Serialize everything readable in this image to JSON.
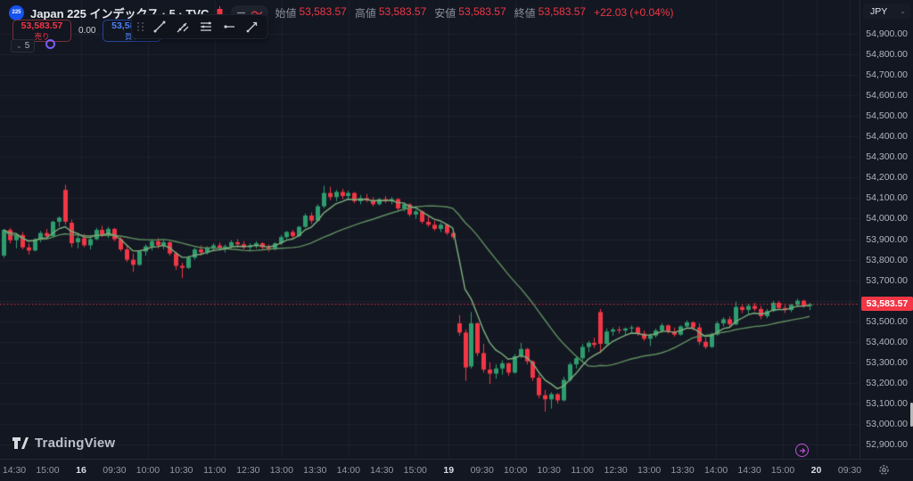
{
  "header": {
    "symbol_badge": "225",
    "symbol_title": "Japan 225 インデックス · 5 · TVC",
    "ohlc": {
      "o_label": "始値",
      "o": "53,583.57",
      "h_label": "高値",
      "h": "53,583.57",
      "l_label": "安値",
      "l": "53,583.57",
      "c_label": "終値",
      "c": "53,583.57",
      "change": "+22.03 (+0.04%)"
    }
  },
  "trade_panel": {
    "sell_price": "53,583.57",
    "sell_label": "売り",
    "spread": "0.00",
    "buy_price": "53,583.57",
    "buy_label": "買い"
  },
  "toolbar_icons": [
    "drag-handle",
    "trend-line",
    "info-line",
    "parallel-lines",
    "horizontal-ray",
    "arrow-line"
  ],
  "timeframe_chip": {
    "value": "5"
  },
  "price_axis": {
    "currency": "JPY",
    "current_price": "53,583.57"
  },
  "footer": {
    "logo_text": "TradingView"
  },
  "chart_data": {
    "type": "candlestick",
    "title": "Japan 225 インデックス",
    "interval": "5",
    "exchange": "TVC",
    "currency": "JPY",
    "ylim": [
      52900,
      54900
    ],
    "y_ticks": [
      54900,
      54800,
      54700,
      54600,
      54500,
      54400,
      54300,
      54200,
      54100,
      54000,
      53900,
      53800,
      53700,
      53600,
      53500,
      53400,
      53300,
      53200,
      53100,
      53000,
      52900
    ],
    "y_tick_format": "#,##0.00",
    "x_ticks": [
      {
        "label": "14:30",
        "bold": false
      },
      {
        "label": "15:00",
        "bold": false
      },
      {
        "label": "16",
        "bold": true
      },
      {
        "label": "09:30",
        "bold": false
      },
      {
        "label": "10:00",
        "bold": false
      },
      {
        "label": "10:30",
        "bold": false
      },
      {
        "label": "11:00",
        "bold": false
      },
      {
        "label": "12:30",
        "bold": false
      },
      {
        "label": "13:00",
        "bold": false
      },
      {
        "label": "13:30",
        "bold": false
      },
      {
        "label": "14:00",
        "bold": false
      },
      {
        "label": "14:30",
        "bold": false
      },
      {
        "label": "15:00",
        "bold": false
      },
      {
        "label": "19",
        "bold": true
      },
      {
        "label": "09:30",
        "bold": false
      },
      {
        "label": "10:00",
        "bold": false
      },
      {
        "label": "10:30",
        "bold": false
      },
      {
        "label": "11:00",
        "bold": false
      },
      {
        "label": "12:30",
        "bold": false
      },
      {
        "label": "13:00",
        "bold": false
      },
      {
        "label": "13:30",
        "bold": false
      },
      {
        "label": "14:00",
        "bold": false
      },
      {
        "label": "14:30",
        "bold": false
      },
      {
        "label": "15:00",
        "bold": false
      },
      {
        "label": "20",
        "bold": true
      },
      {
        "label": "09:30",
        "bold": false
      }
    ],
    "grid_tick_indices": [
      2,
      4,
      6,
      8,
      10,
      12,
      13,
      15,
      17,
      19,
      21,
      23,
      24,
      25
    ],
    "current_price": 53583.57,
    "up_color": "#2e9d6e",
    "down_color": "#f23645",
    "ma_overlays": [
      {
        "name": "ma-fast",
        "period": 6,
        "color": "#7fae7c"
      },
      {
        "name": "ma-slow",
        "period": 22,
        "color": "#5f8f5f"
      }
    ],
    "candles": [
      [
        53820,
        53950,
        53810,
        53945
      ],
      [
        53945,
        53955,
        53880,
        53895
      ],
      [
        53895,
        53930,
        53855,
        53920
      ],
      [
        53920,
        53935,
        53850,
        53860
      ],
      [
        53860,
        53880,
        53825,
        53845
      ],
      [
        53845,
        53905,
        53840,
        53900
      ],
      [
        53900,
        53940,
        53885,
        53930
      ],
      [
        53930,
        53950,
        53900,
        53915
      ],
      [
        53915,
        53990,
        53910,
        53985
      ],
      [
        53985,
        54010,
        53960,
        54005
      ],
      [
        54140,
        54165,
        53970,
        53985
      ],
      [
        53980,
        53995,
        53860,
        53880
      ],
      [
        53885,
        53915,
        53855,
        53905
      ],
      [
        53905,
        53925,
        53860,
        53870
      ],
      [
        53870,
        53910,
        53850,
        53900
      ],
      [
        53900,
        53955,
        53895,
        53945
      ],
      [
        53945,
        53965,
        53910,
        53920
      ],
      [
        53920,
        53960,
        53905,
        53950
      ],
      [
        53950,
        53955,
        53890,
        53900
      ],
      [
        53900,
        53910,
        53840,
        53850
      ],
      [
        53850,
        53870,
        53790,
        53800
      ],
      [
        53800,
        53830,
        53740,
        53775
      ],
      [
        53775,
        53845,
        53770,
        53840
      ],
      [
        53840,
        53875,
        53820,
        53865
      ],
      [
        53865,
        53900,
        53845,
        53890
      ],
      [
        53890,
        53905,
        53855,
        53870
      ],
      [
        53870,
        53895,
        53850,
        53885
      ],
      [
        53885,
        53890,
        53820,
        53830
      ],
      [
        53830,
        53840,
        53750,
        53770
      ],
      [
        53770,
        53785,
        53710,
        53760
      ],
      [
        53760,
        53820,
        53755,
        53810
      ],
      [
        53810,
        53860,
        53800,
        53850
      ],
      [
        53850,
        53870,
        53820,
        53835
      ],
      [
        53835,
        53865,
        53825,
        53855
      ],
      [
        53855,
        53880,
        53840,
        53870
      ],
      [
        53870,
        53885,
        53845,
        53855
      ],
      [
        53855,
        53875,
        53835,
        53865
      ],
      [
        53865,
        53895,
        53855,
        53885
      ],
      [
        53885,
        53900,
        53860,
        53875
      ],
      [
        53875,
        53890,
        53850,
        53860
      ],
      [
        53860,
        53880,
        53845,
        53870
      ],
      [
        53870,
        53890,
        53855,
        53880
      ],
      [
        53880,
        53885,
        53850,
        53860
      ],
      [
        53860,
        53875,
        53840,
        53850
      ],
      [
        53850,
        53885,
        53845,
        53880
      ],
      [
        53880,
        53920,
        53870,
        53910
      ],
      [
        53910,
        53940,
        53900,
        53935
      ],
      [
        53935,
        53945,
        53905,
        53915
      ],
      [
        53915,
        53965,
        53910,
        53960
      ],
      [
        53960,
        54025,
        53955,
        54015
      ],
      [
        54015,
        54030,
        53975,
        53990
      ],
      [
        53990,
        54070,
        53985,
        54060
      ],
      [
        54060,
        54160,
        54050,
        54125
      ],
      [
        54125,
        54155,
        54090,
        54105
      ],
      [
        54105,
        54140,
        54085,
        54130
      ],
      [
        54130,
        54145,
        54095,
        54110
      ],
      [
        54110,
        54135,
        54090,
        54125
      ],
      [
        54125,
        54130,
        54075,
        54085
      ],
      [
        54085,
        54115,
        54070,
        54100
      ],
      [
        54100,
        54120,
        54080,
        54090
      ],
      [
        54090,
        54105,
        54060,
        54070
      ],
      [
        54070,
        54100,
        54065,
        54095
      ],
      [
        54095,
        54110,
        54075,
        54085
      ],
      [
        54085,
        54105,
        54070,
        54095
      ],
      [
        54095,
        54100,
        54040,
        54050
      ],
      [
        54050,
        54080,
        54035,
        54070
      ],
      [
        54070,
        54075,
        54010,
        54020
      ],
      [
        54020,
        54045,
        54000,
        54035
      ],
      [
        54035,
        54040,
        53975,
        53985
      ],
      [
        53985,
        54010,
        53960,
        53970
      ],
      [
        53970,
        53990,
        53940,
        53950
      ],
      [
        53950,
        53980,
        53935,
        53970
      ],
      [
        53970,
        53975,
        53920,
        53930
      ],
      [
        53930,
        53950,
        53900,
        53910
      ],
      [
        53490,
        53530,
        53430,
        53445
      ],
      [
        53445,
        53460,
        53210,
        53275
      ],
      [
        53280,
        53545,
        53270,
        53490
      ],
      [
        53490,
        53495,
        53330,
        53345
      ],
      [
        53345,
        53390,
        53250,
        53265
      ],
      [
        53265,
        53300,
        53195,
        53245
      ],
      [
        53245,
        53290,
        53220,
        53270
      ],
      [
        53270,
        53310,
        53240,
        53295
      ],
      [
        53295,
        53300,
        53235,
        53250
      ],
      [
        53250,
        53340,
        53245,
        53330
      ],
      [
        53330,
        53395,
        53320,
        53365
      ],
      [
        53365,
        53370,
        53290,
        53305
      ],
      [
        53305,
        53310,
        53210,
        53225
      ],
      [
        53225,
        53240,
        53125,
        53140
      ],
      [
        53140,
        53165,
        53060,
        53120
      ],
      [
        53120,
        53155,
        53075,
        53145
      ],
      [
        53145,
        53150,
        53100,
        53115
      ],
      [
        53115,
        53230,
        53110,
        53215
      ],
      [
        53215,
        53300,
        53205,
        53290
      ],
      [
        53290,
        53330,
        53270,
        53320
      ],
      [
        53320,
        53390,
        53310,
        53375
      ],
      [
        53375,
        53405,
        53350,
        53395
      ],
      [
        53395,
        53420,
        53370,
        53385
      ],
      [
        53545,
        53560,
        53345,
        53390
      ],
      [
        53390,
        53465,
        53385,
        53450
      ],
      [
        53450,
        53470,
        53430,
        53460
      ],
      [
        53460,
        53475,
        53440,
        53455
      ],
      [
        53455,
        53470,
        53435,
        53465
      ],
      [
        53465,
        53480,
        53445,
        53470
      ],
      [
        53470,
        53475,
        53430,
        53440
      ],
      [
        53440,
        53455,
        53405,
        53415
      ],
      [
        53415,
        53440,
        53380,
        53430
      ],
      [
        53430,
        53465,
        53420,
        53455
      ],
      [
        53455,
        53490,
        53445,
        53480
      ],
      [
        53480,
        53485,
        53440,
        53450
      ],
      [
        53450,
        53470,
        53425,
        53435
      ],
      [
        53435,
        53480,
        53430,
        53475
      ],
      [
        53475,
        53505,
        53465,
        53495
      ],
      [
        53495,
        53500,
        53455,
        53470
      ],
      [
        53470,
        53490,
        53385,
        53400
      ],
      [
        53400,
        53420,
        53365,
        53375
      ],
      [
        53375,
        53445,
        53370,
        53435
      ],
      [
        53435,
        53500,
        53430,
        53490
      ],
      [
        53490,
        53520,
        53475,
        53510
      ],
      [
        53510,
        53525,
        53470,
        53485
      ],
      [
        53485,
        53595,
        53480,
        53570
      ],
      [
        53570,
        53580,
        53540,
        53555
      ],
      [
        53555,
        53585,
        53535,
        53575
      ],
      [
        53575,
        53590,
        53550,
        53560
      ],
      [
        53560,
        53575,
        53510,
        53525
      ],
      [
        53525,
        53560,
        53515,
        53550
      ],
      [
        53550,
        53600,
        53545,
        53590
      ],
      [
        53590,
        53600,
        53555,
        53565
      ],
      [
        53565,
        53580,
        53540,
        53555
      ],
      [
        53555,
        53585,
        53545,
        53580
      ],
      [
        53580,
        53610,
        53570,
        53600
      ],
      [
        53600,
        53605,
        53565,
        53575
      ],
      [
        53575,
        53590,
        53555,
        53583.57
      ]
    ]
  }
}
